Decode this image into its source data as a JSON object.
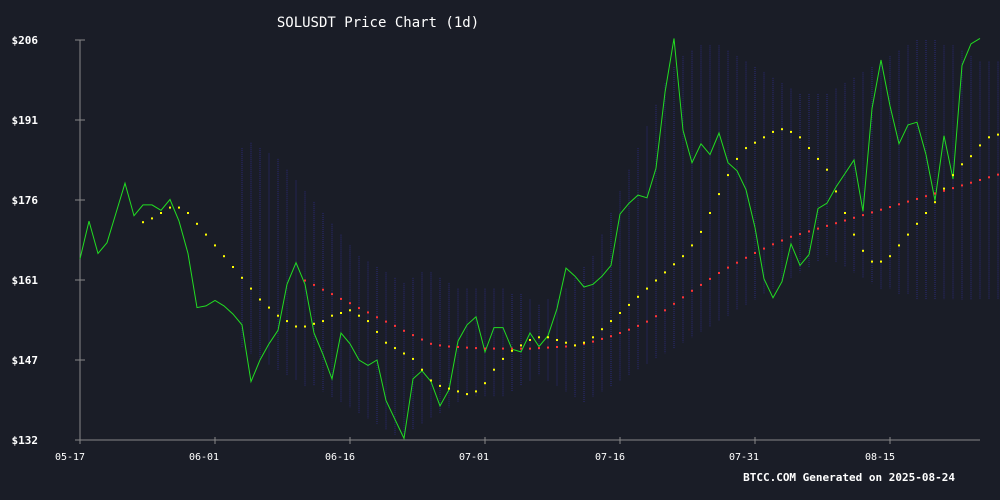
{
  "chart_data": {
    "type": "line",
    "title": "SOLUSDT Price Chart (1d)",
    "footer": "BTCC.COM Generated on 2025-08-24",
    "xlabel": "",
    "ylabel": "",
    "x_ticks": [
      "05-17",
      "06-01",
      "06-16",
      "07-01",
      "07-16",
      "07-31",
      "08-15"
    ],
    "y_ticks": [
      "$132",
      "$147",
      "$161",
      "$176",
      "$191",
      "$206"
    ],
    "ylim": [
      132,
      206
    ],
    "x_start": "2025-05-17",
    "grid": false,
    "colors": {
      "background": "#1a1d27",
      "price": "#22dd22",
      "ma20": "#ffff00",
      "ma50": "#ff3333",
      "band": "#2a2a7a",
      "axis": "#888888",
      "text": "#ffffff"
    },
    "series": [
      {
        "key": "price",
        "values": [
          165.5,
          172.5,
          166.5,
          168.5,
          174.0,
          179.5,
          173.5,
          175.5,
          175.5,
          174.5,
          176.5,
          172.5,
          166.5,
          156.5,
          156.8,
          157.8,
          156.8,
          155.3,
          153.3,
          142.8,
          146.8,
          149.8,
          152.3,
          160.8,
          164.8,
          160.8,
          151.8,
          147.8,
          143.3,
          151.8,
          149.8,
          146.8,
          145.8,
          146.8,
          139.3,
          135.8,
          132.3,
          143.3,
          144.8,
          142.8,
          138.3,
          141.3,
          150.3,
          153.3,
          154.8,
          148.3,
          152.8,
          152.8,
          148.8,
          148.3,
          151.8,
          149.3,
          151.3,
          156.3,
          163.8,
          162.3,
          160.3,
          160.8,
          162.3,
          164.3,
          173.8,
          175.8,
          177.3,
          176.8,
          182.3,
          196.3,
          206.3,
          189.3,
          183.3,
          186.8,
          184.8,
          188.8,
          183.3,
          181.8,
          178.3,
          171.3,
          161.8,
          158.3,
          161.3,
          168.3,
          164.3,
          166.3,
          174.8,
          175.8,
          178.8,
          181.3,
          183.8,
          174.3,
          193.3,
          202.3,
          193.8,
          186.8,
          190.3,
          190.8,
          184.8,
          176.3,
          188.3,
          180.3,
          201.3,
          205.3,
          206.3
        ]
      },
      {
        "key": "ma20",
        "start_index": 7,
        "values": [
          172.3,
          173.0,
          174.0,
          175.0,
          175.0,
          174.0,
          172.0,
          170.0,
          168.0,
          166.0,
          164.0,
          162.0,
          160.0,
          158.0,
          156.5,
          155.0,
          154.0,
          153.0,
          153.0,
          153.5,
          154.0,
          155.0,
          155.5,
          156.0,
          155.0,
          154.0,
          152.0,
          150.0,
          149.0,
          148.0,
          147.0,
          145.0,
          143.0,
          142.0,
          141.5,
          141.0,
          140.5,
          141.0,
          142.5,
          145.0,
          147.0,
          148.5,
          149.5,
          150.5,
          151.0,
          151.0,
          150.5,
          150.0,
          149.5,
          150.0,
          151.0,
          152.5,
          154.0,
          155.5,
          157.0,
          158.5,
          160.0,
          161.5,
          163.0,
          164.5,
          166.0,
          168.0,
          170.5,
          174.0,
          177.5,
          181.0,
          184.0,
          186.0,
          187.0,
          188.0,
          189.0,
          189.5,
          189.0,
          188.0,
          186.0,
          184.0,
          182.0,
          178.0,
          174.0,
          170.0,
          167.0,
          165.0,
          165.0,
          166.0,
          168.0,
          170.0,
          172.0,
          174.0,
          176.0,
          178.5,
          181.0,
          183.0,
          184.5,
          186.5,
          188.0,
          188.5,
          187.5,
          186.0,
          185.0,
          186.5,
          188.5,
          190.0,
          191.5
        ]
      },
      {
        "key": "ma50",
        "start_index": 25,
        "values": [
          161.5,
          160.7,
          159.8,
          159.0,
          158.1,
          157.3,
          156.4,
          155.6,
          154.7,
          153.9,
          153.1,
          152.2,
          151.4,
          150.6,
          149.8,
          149.5,
          149.3,
          149.2,
          149.1,
          149.0,
          148.9,
          148.9,
          148.9,
          148.9,
          148.9,
          148.9,
          149.0,
          149.1,
          149.2,
          149.3,
          149.5,
          149.8,
          150.2,
          150.7,
          151.2,
          151.8,
          152.4,
          153.1,
          153.9,
          154.9,
          156.0,
          157.2,
          158.4,
          159.6,
          160.7,
          161.8,
          162.9,
          163.9,
          164.8,
          165.7,
          166.6,
          167.4,
          168.2,
          168.9,
          169.6,
          170.1,
          170.6,
          171.1,
          171.6,
          172.1,
          172.6,
          173.1,
          173.6,
          174.1,
          174.6,
          175.1,
          175.6,
          176.1,
          176.6,
          177.1,
          177.6,
          178.1,
          178.6,
          179.1,
          179.6,
          180.1,
          180.6,
          181.1,
          181.6,
          181.9,
          182.1,
          182.1,
          181.9,
          181.6,
          181.3,
          181.0,
          181.2,
          181.5,
          182.0
        ]
      },
      {
        "key": "bb_upper",
        "start_index": 18,
        "values": [
          186,
          187,
          186,
          185,
          184,
          182,
          180,
          178,
          176,
          174,
          172,
          170,
          168,
          166,
          165,
          164,
          163,
          162,
          161,
          162,
          163,
          163,
          162,
          161,
          160,
          160,
          160,
          160,
          160,
          160,
          159,
          159,
          158,
          157,
          158,
          158,
          160,
          162,
          164,
          166,
          170,
          174,
          178,
          182,
          186,
          190,
          194,
          198,
          201,
          203,
          204,
          205,
          205,
          205,
          204,
          203,
          202,
          201,
          200,
          199,
          198,
          197,
          196,
          196,
          196,
          196,
          197,
          198,
          199,
          200,
          201,
          202,
          203,
          204,
          205,
          206,
          206,
          206,
          205,
          205,
          204,
          203,
          202,
          202,
          202
        ]
      },
      {
        "key": "bb_lower",
        "start_index": 18,
        "values": [
          149,
          148,
          147,
          146,
          145,
          144,
          143,
          142,
          142,
          141,
          140,
          139,
          138,
          137,
          136,
          135,
          134,
          133,
          133,
          134,
          135,
          136,
          137,
          138,
          139,
          140,
          140,
          140,
          140,
          140,
          141,
          142,
          143,
          144,
          143,
          142,
          141,
          140,
          139,
          140,
          141,
          142,
          143,
          144,
          145,
          146,
          147,
          148,
          149,
          150,
          151,
          152,
          153,
          154,
          155,
          156,
          157,
          158,
          159,
          160,
          161,
          162,
          163,
          164,
          165,
          166,
          165,
          164,
          163,
          162,
          161,
          160,
          160,
          159,
          159,
          158,
          158,
          158,
          158,
          158,
          158,
          158,
          158,
          158,
          158
        ]
      }
    ]
  }
}
